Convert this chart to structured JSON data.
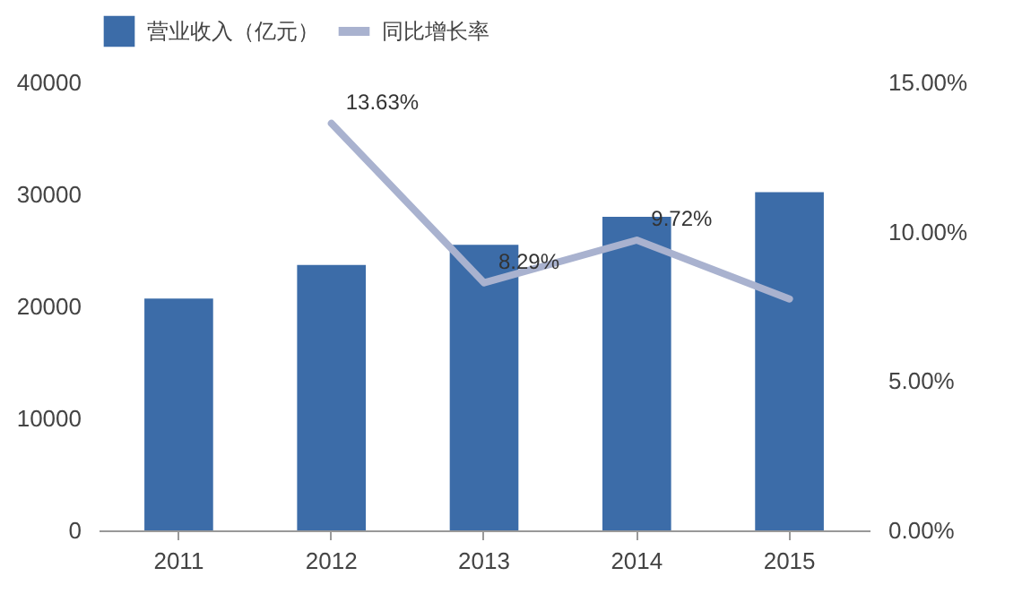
{
  "chart_data": {
    "type": "bar",
    "categories": [
      "2011",
      "2012",
      "2013",
      "2014",
      "2015"
    ],
    "series": [
      {
        "name": "营业收入（亿元）",
        "color": "#3c6ca8",
        "values": [
          20700,
          23700,
          25500,
          28000,
          30200
        ]
      },
      {
        "name": "同比增长率",
        "type": "line",
        "axis": "y2",
        "color": "#a9b2cf",
        "values": [
          null,
          13.63,
          8.29,
          9.72,
          7.75
        ],
        "value_labels": [
          null,
          "13.63%",
          "8.29%",
          "9.72%",
          null
        ]
      }
    ],
    "ylim": [
      0,
      40000
    ],
    "yticks": [
      0,
      10000,
      20000,
      30000,
      40000
    ],
    "y2lim": [
      0,
      15
    ],
    "y2ticks": [
      {
        "value": 0,
        "label": "0.00%"
      },
      {
        "value": 5,
        "label": "5.00%"
      },
      {
        "value": 10,
        "label": "10.00%"
      },
      {
        "value": 15,
        "label": "15.00%"
      }
    ],
    "legend": "top",
    "grid": false
  }
}
